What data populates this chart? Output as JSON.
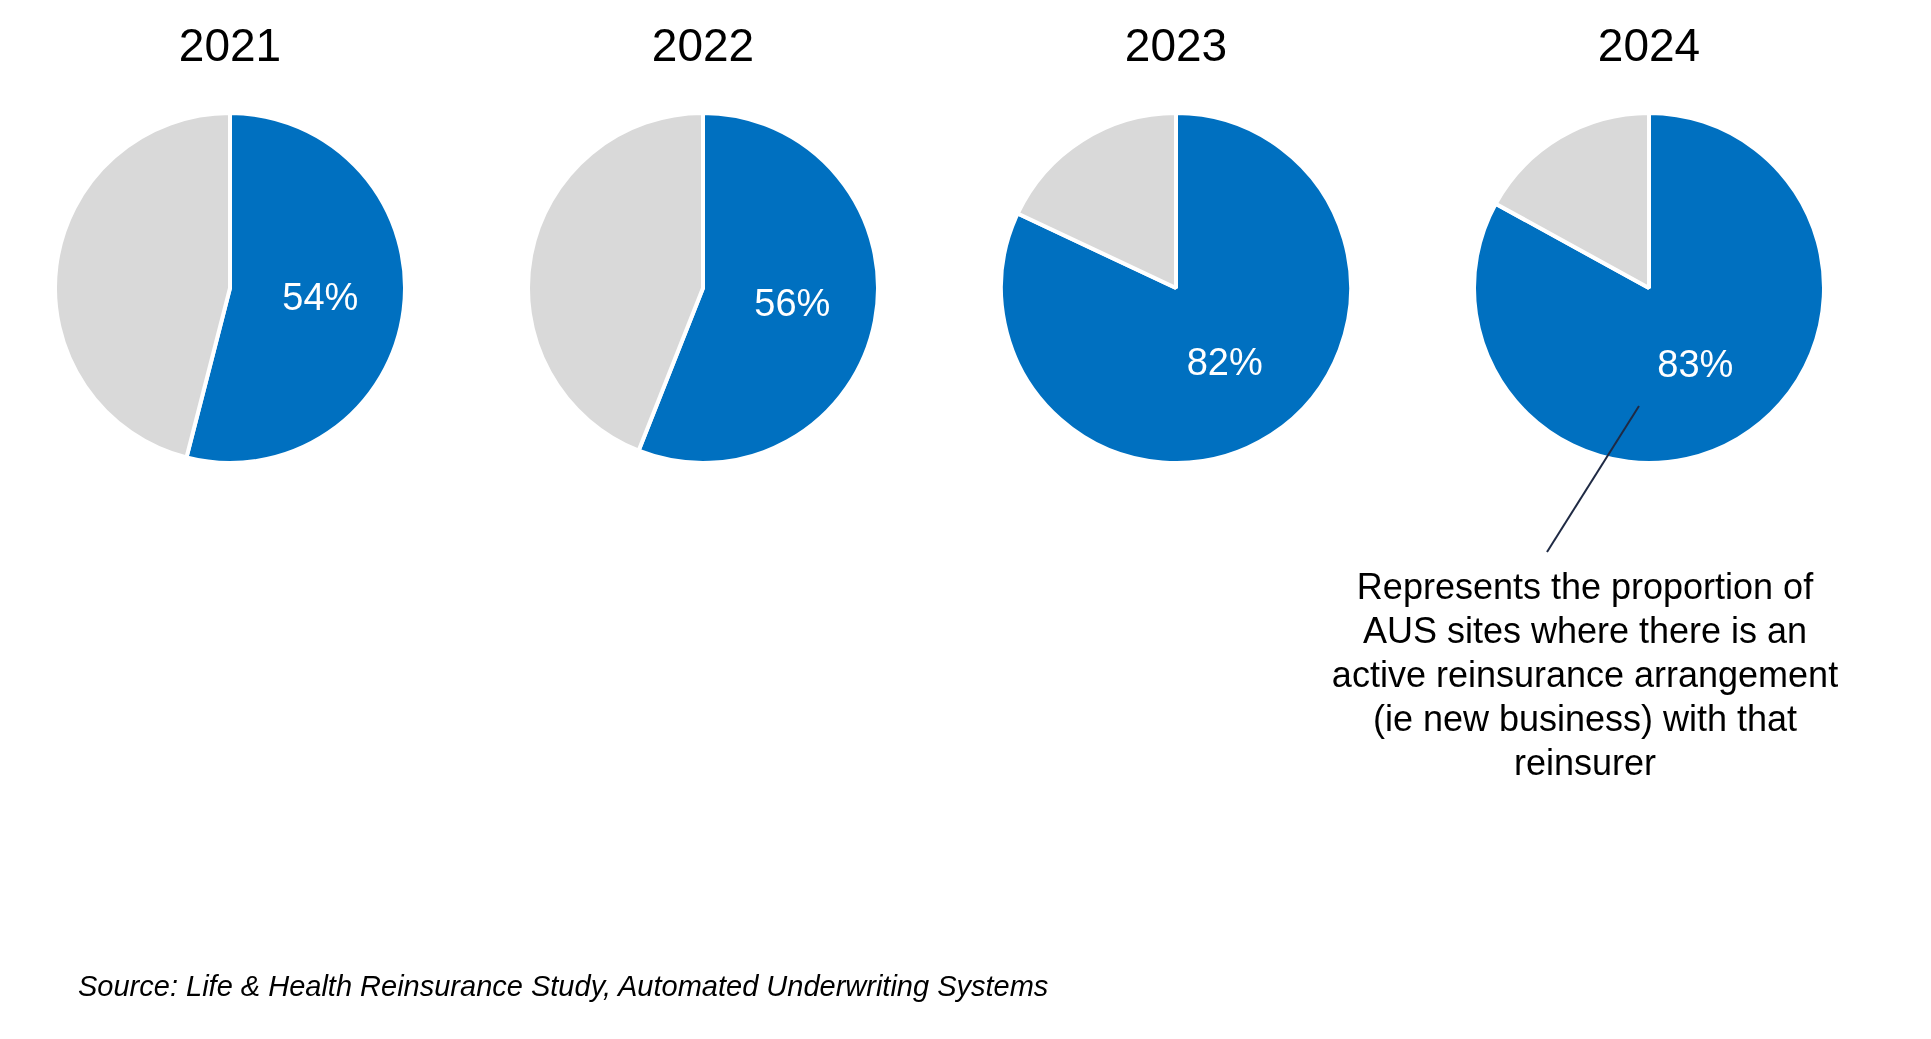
{
  "chart_data": [
    {
      "type": "pie",
      "title": "2021",
      "categories": [
        null,
        null
      ],
      "values": [
        54,
        46
      ],
      "colors": [
        "#0070c0",
        "#d9d9d9"
      ],
      "value_labels": [
        "54%",
        null
      ],
      "legend": false
    },
    {
      "type": "pie",
      "title": "2022",
      "categories": [
        null,
        null
      ],
      "values": [
        56,
        44
      ],
      "colors": [
        "#0070c0",
        "#d9d9d9"
      ],
      "value_labels": [
        "56%",
        null
      ],
      "legend": false
    },
    {
      "type": "pie",
      "title": "2023",
      "categories": [
        null,
        null
      ],
      "values": [
        82,
        18
      ],
      "colors": [
        "#0070c0",
        "#d9d9d9"
      ],
      "value_labels": [
        "82%",
        null
      ],
      "legend": false
    },
    {
      "type": "pie",
      "title": "2024",
      "categories": [
        null,
        null
      ],
      "values": [
        83,
        17
      ],
      "colors": [
        "#0070c0",
        "#d9d9d9"
      ],
      "value_labels": [
        "83%",
        null
      ],
      "legend": false,
      "annotations": [
        "Represents the proportion of AUS sites where there is an active reinsurance arrangement (ie new business) with that reinsurer",
        "Source: Life & Health Reinsurance Study, Automated Underwriting Systems"
      ]
    }
  ]
}
